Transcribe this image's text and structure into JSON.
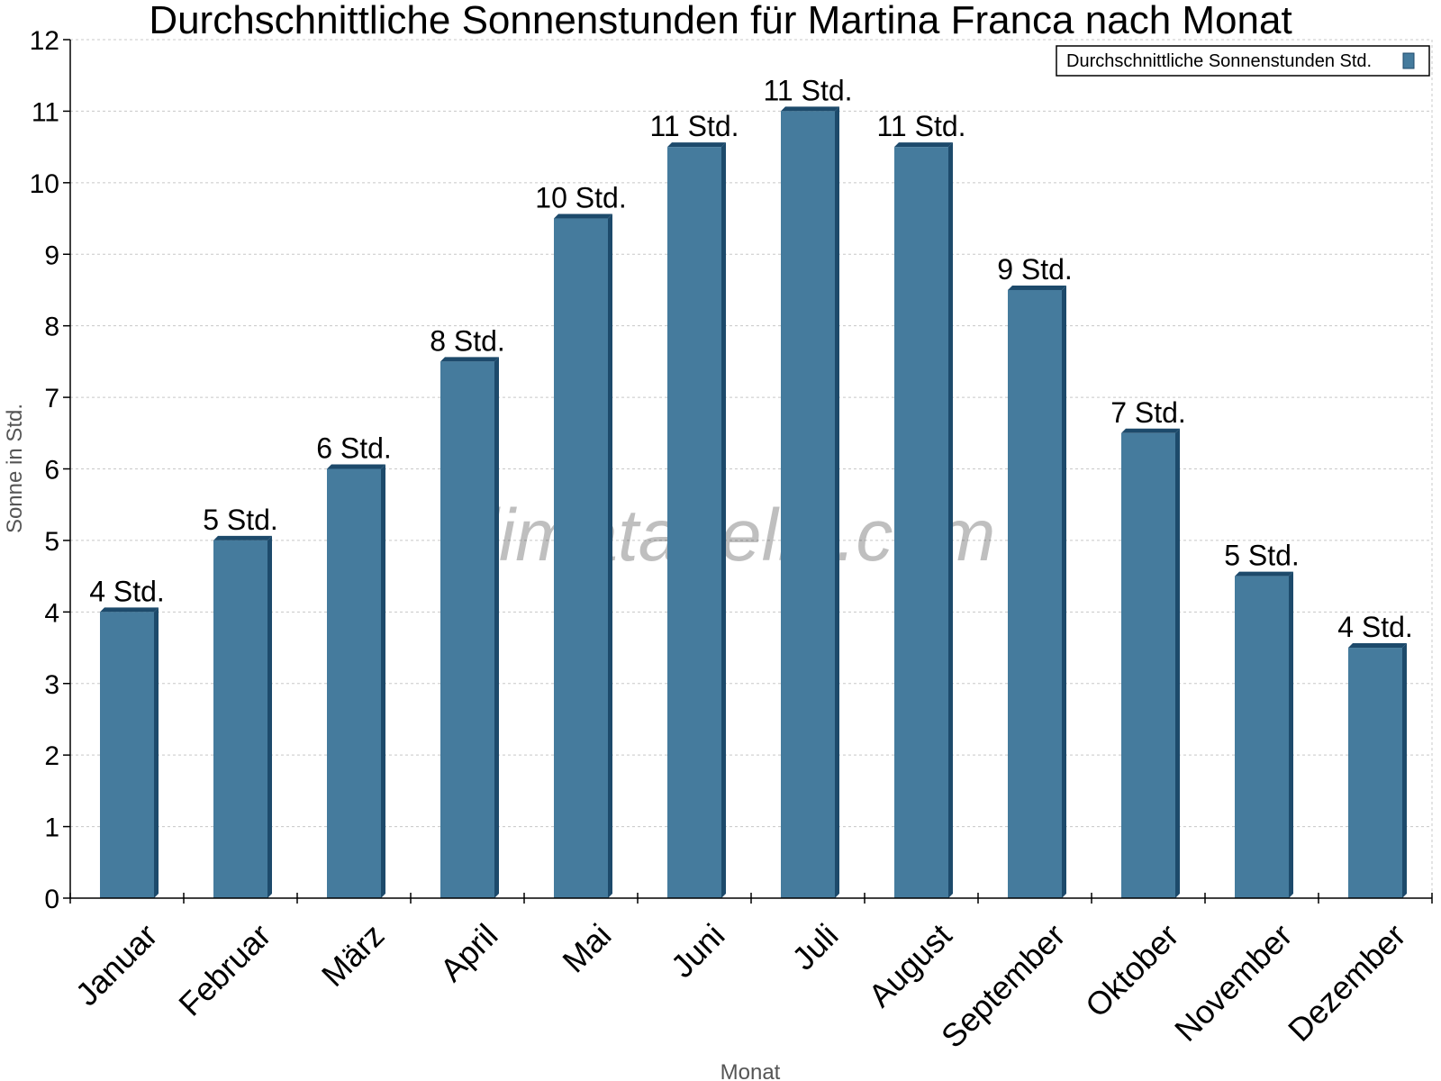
{
  "chart_data": {
    "type": "bar",
    "title": "Durchschnittliche Sonnenstunden für Martina Franca nach Monat",
    "xlabel": "Monat",
    "ylabel": "Sonne in Std.",
    "ylim": [
      0,
      12
    ],
    "yticks": [
      0,
      1,
      2,
      3,
      4,
      5,
      6,
      7,
      8,
      9,
      10,
      11,
      12
    ],
    "grid": true,
    "legend_position": "top-right",
    "categories": [
      "Januar",
      "Februar",
      "März",
      "April",
      "Mai",
      "Juni",
      "Juli",
      "August",
      "September",
      "Oktober",
      "November",
      "Dezember"
    ],
    "series": [
      {
        "name": "Durchschnittliche Sonnenstunden Std.",
        "values": [
          4,
          5,
          6,
          7.5,
          9.5,
          10.5,
          11,
          10.5,
          8.5,
          6.5,
          4.5,
          3.5
        ],
        "labels": [
          "4 Std.",
          "5 Std.",
          "6 Std.",
          "8 Std.",
          "10 Std.",
          "11 Std.",
          "11 Std.",
          "11 Std.",
          "9 Std.",
          "7 Std.",
          "5 Std.",
          "4 Std."
        ]
      }
    ],
    "colors": {
      "bar": "#457b9d",
      "bar_side": "#1d4a6b",
      "grid": "#c8c8c8"
    }
  },
  "watermark": "klimatabelle.com"
}
